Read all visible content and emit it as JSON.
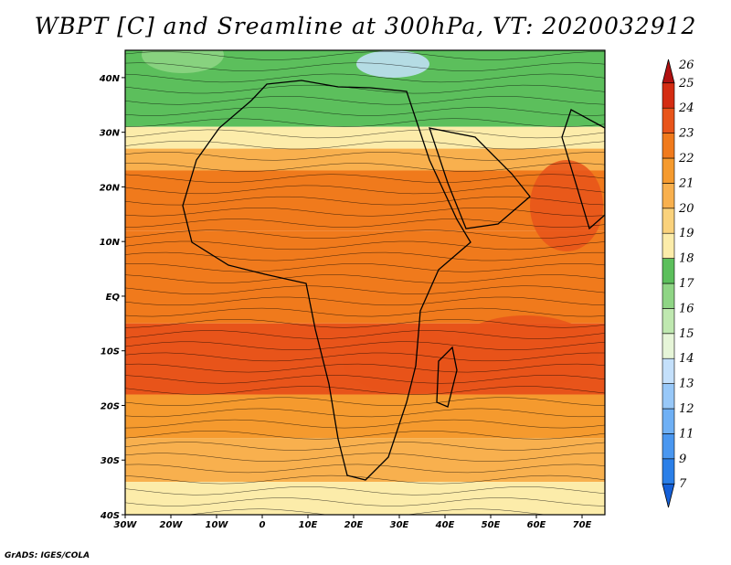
{
  "title": "WBPT [C] and Sreamline at 300hPa, VT: 2020032912",
  "credit": "GrADS: IGES/COLA",
  "map": {
    "lon_range": [
      -30,
      75
    ],
    "lat_range": [
      -40,
      45
    ],
    "lon_ticks": [
      {
        "value": -30,
        "label": "30W"
      },
      {
        "value": -20,
        "label": "20W"
      },
      {
        "value": -10,
        "label": "10W"
      },
      {
        "value": 0,
        "label": "0"
      },
      {
        "value": 10,
        "label": "10E"
      },
      {
        "value": 20,
        "label": "20E"
      },
      {
        "value": 30,
        "label": "30E"
      },
      {
        "value": 40,
        "label": "40E"
      },
      {
        "value": 50,
        "label": "50E"
      },
      {
        "value": 60,
        "label": "60E"
      },
      {
        "value": 70,
        "label": "70E"
      }
    ],
    "lat_ticks": [
      {
        "value": 40,
        "label": "40N"
      },
      {
        "value": 30,
        "label": "30N"
      },
      {
        "value": 20,
        "label": "20N"
      },
      {
        "value": 10,
        "label": "10N"
      },
      {
        "value": 0,
        "label": "EQ"
      },
      {
        "value": -10,
        "label": "10S"
      },
      {
        "value": -20,
        "label": "20S"
      },
      {
        "value": -30,
        "label": "30S"
      },
      {
        "value": -40,
        "label": "40S"
      }
    ]
  },
  "colorbar": {
    "levels": [
      "7",
      "9",
      "11",
      "12",
      "13",
      "14",
      "15",
      "16",
      "17",
      "18",
      "19",
      "20",
      "21",
      "22",
      "23",
      "24",
      "25",
      "26"
    ],
    "colors": [
      "#1560d8",
      "#2b7fe8",
      "#4a97f0",
      "#6fb0f5",
      "#98c8f8",
      "#c4e0fb",
      "#e6f5d8",
      "#bfe8b0",
      "#8fd585",
      "#5cbf5c",
      "#fcecaa",
      "#fad27c",
      "#f8b04e",
      "#f59a2e",
      "#f07a1c",
      "#e8541a",
      "#d42c12",
      "#b01010"
    ]
  },
  "field_bands": [
    {
      "lat_from": 45,
      "lat_to": 31,
      "color": "#5cbf5c"
    },
    {
      "lat_from": 31,
      "lat_to": 27,
      "color": "#fcecaa"
    },
    {
      "lat_from": 27,
      "lat_to": 23,
      "color": "#f8b04e"
    },
    {
      "lat_from": 23,
      "lat_to": 12,
      "color": "#f07a1c"
    },
    {
      "lat_from": 12,
      "lat_to": -5,
      "color": "#f07a1c"
    },
    {
      "lat_from": -5,
      "lat_to": -18,
      "color": "#e8541a"
    },
    {
      "lat_from": -18,
      "lat_to": -26,
      "color": "#f59a2e"
    },
    {
      "lat_from": -26,
      "lat_to": -34,
      "color": "#f8b04e"
    },
    {
      "lat_from": -34,
      "lat_to": -40,
      "color": "#fcecaa"
    }
  ]
}
